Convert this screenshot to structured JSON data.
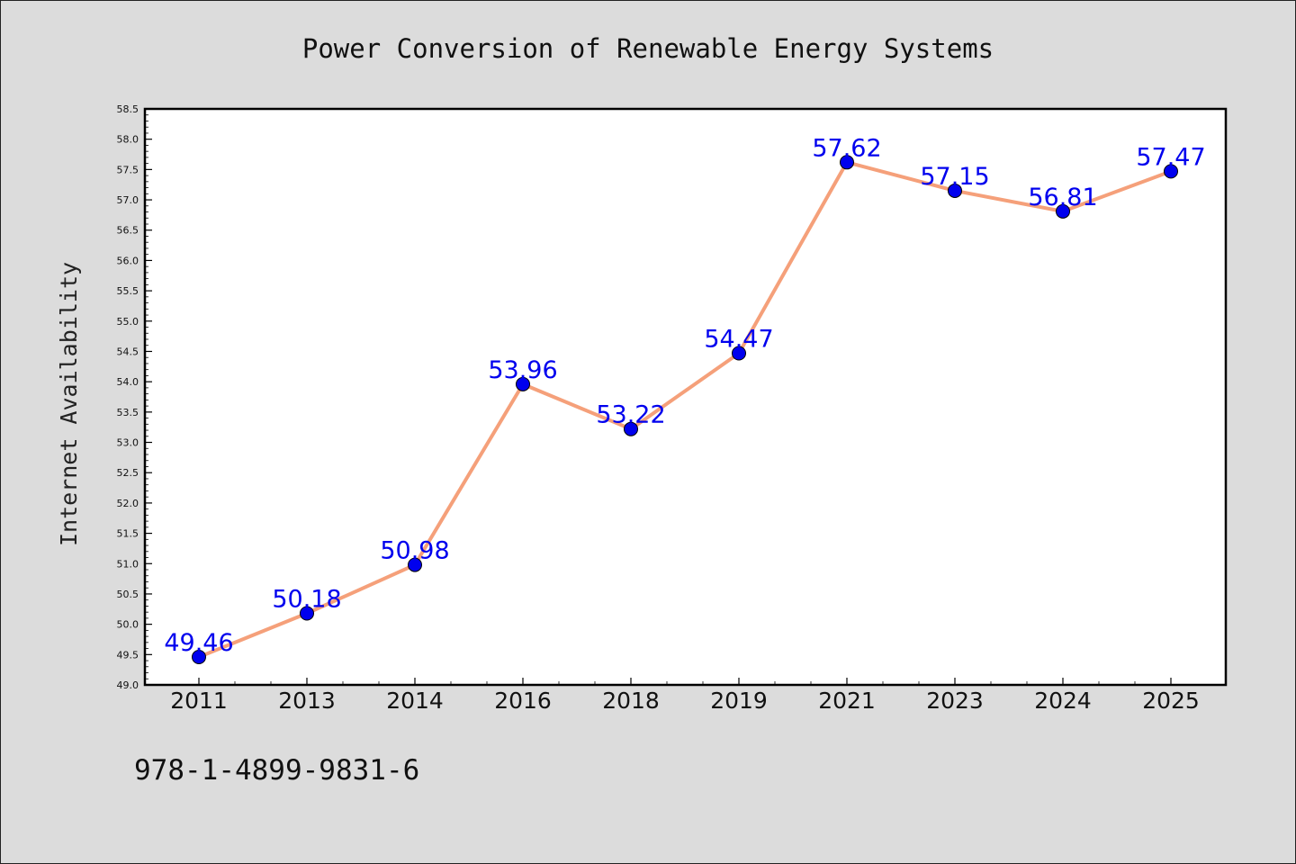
{
  "chart_data": {
    "type": "line",
    "title": "Power Conversion of Renewable Energy Systems",
    "ylabel": "Internet Availability",
    "xlabel": "",
    "categories": [
      "2011",
      "2013",
      "2014",
      "2016",
      "2018",
      "2019",
      "2021",
      "2023",
      "2024",
      "2025"
    ],
    "series": [
      {
        "values": [
          49.46,
          50.18,
          50.98,
          53.96,
          53.22,
          54.47,
          57.62,
          57.15,
          56.81,
          57.47
        ],
        "value_labels": [
          "49.46",
          "50.18",
          "50.98",
          "53.96",
          "53.22",
          "54.47",
          "57.62",
          "57.15",
          "56.81",
          "57.47"
        ],
        "line_color": "#f5a07a",
        "marker_color": "#0000ee",
        "label_color": "#0000ee"
      }
    ],
    "ylim": [
      49.0,
      58.5
    ],
    "y_major_step": 0.5,
    "y_tick_labels": [
      "49.0",
      "49.5",
      "50.0",
      "50.5",
      "51.0",
      "51.5",
      "52.0",
      "52.5",
      "53.0",
      "53.5",
      "54.0",
      "54.5",
      "55.0",
      "55.5",
      "56.0",
      "56.5",
      "57.0",
      "57.5",
      "58.0",
      "58.5"
    ],
    "grid": false,
    "legend": "none"
  },
  "footnote": "978-1-4899-9831-6",
  "colors": {
    "background": "#dcdcdc",
    "plot_background": "#ffffff",
    "axis": "#000000"
  }
}
